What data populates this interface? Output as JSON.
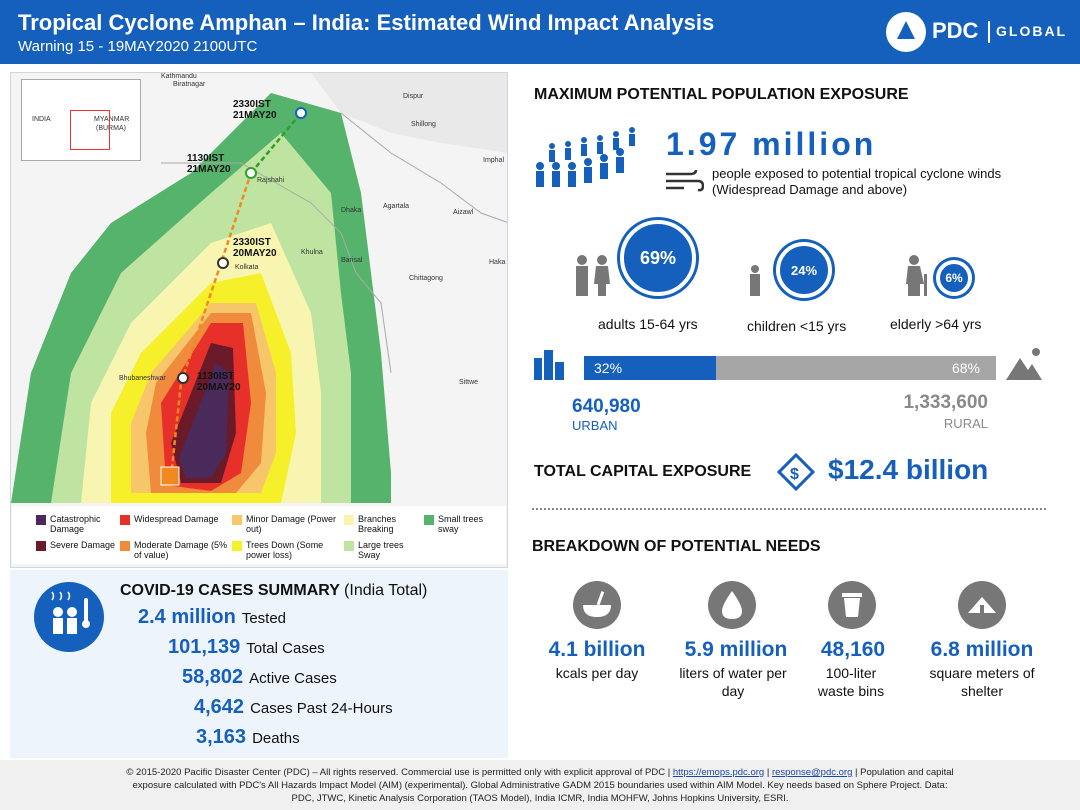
{
  "header": {
    "title": "Tropical Cyclone Amphan – India: Estimated Wind Impact Analysis",
    "subtitle": "Warning 15 - 19MAY2020 2100UTC",
    "brand_name": "PDC",
    "brand_global": "GLOBAL"
  },
  "map": {
    "inset_labels": [
      "INDIA",
      "MYANMAR",
      "(BURMA)"
    ],
    "places": [
      "Kathmandu",
      "Biratnagar",
      "Dispur",
      "Shillong",
      "Imphal",
      "Rajshahi",
      "Dhaka",
      "Agartala",
      "Aizawl",
      "Khulna",
      "Barisal",
      "Kolkata",
      "Chittagong",
      "Bhubaneshwar",
      "Sittwe",
      "Haka"
    ],
    "track_points": [
      {
        "label": "2330IST 21MAY20"
      },
      {
        "label": "1130IST 21MAY20"
      },
      {
        "label": "2330IST 20MAY20"
      },
      {
        "label": "1130IST 20MAY20"
      }
    ],
    "legend": [
      {
        "label": "Catastrophic Damage",
        "color": "#4a2a5a"
      },
      {
        "label": "Severe Damage",
        "color": "#6b1a2a"
      },
      {
        "label": "Widespread Damage",
        "color": "#e8302a"
      },
      {
        "label": "Moderate Damage (5% of value)",
        "color": "#f08a3c"
      },
      {
        "label": "Minor Damage (Power out)",
        "color": "#f7c66a"
      },
      {
        "label": "Trees Down (Some power loss)",
        "color": "#f5f02a"
      },
      {
        "label": "Branches Breaking",
        "color": "#f8f5b0"
      },
      {
        "label": "Large trees Sway",
        "color": "#bfe3a0"
      },
      {
        "label": "Small trees sway",
        "color": "#55b36b"
      }
    ]
  },
  "covid": {
    "title": "COVID-19 CASES SUMMARY",
    "title_sub": "(India Total)",
    "rows": [
      {
        "value": "2.4 million",
        "label": "Tested"
      },
      {
        "value": "101,139",
        "label": "Total Cases"
      },
      {
        "value": "58,802",
        "label": "Active Cases"
      },
      {
        "value": "4,642",
        "label": "Cases Past 24-Hours"
      },
      {
        "value": "3,163",
        "label": "Deaths"
      }
    ]
  },
  "exposure": {
    "title": "MAXIMUM POTENTIAL POPULATION EXPOSURE",
    "total": "1.97 million",
    "description_1": "people exposed to potential tropical cyclone winds",
    "description_2": "(Widespread Damage and above)",
    "groups": [
      {
        "pct": "69%",
        "label": "adults 15-64 yrs"
      },
      {
        "pct": "24%",
        "label": "children <15 yrs"
      },
      {
        "pct": "6%",
        "label": "elderly >64 yrs"
      }
    ],
    "urban_pct": "32%",
    "rural_pct": "68%",
    "urban_fraction": 0.32,
    "urban_value": "640,980",
    "urban_label": "URBAN",
    "rural_value": "1,333,600",
    "rural_label": "RURAL"
  },
  "capital": {
    "title": "TOTAL CAPITAL EXPOSURE",
    "value": "$12.4 billion"
  },
  "needs": {
    "title": "BREAKDOWN OF POTENTIAL NEEDS",
    "items": [
      {
        "value": "4.1 billion",
        "label": "kcals per day"
      },
      {
        "value": "5.9 million",
        "label": "liters of water per day"
      },
      {
        "value": "48,160",
        "label": "100-liter waste bins"
      },
      {
        "value": "6.8 million",
        "label": "square meters of shelter"
      }
    ]
  },
  "footer": {
    "line_1a": "© 2015-2020 Pacific Disaster Center (PDC) – All rights reserved. Commercial use is permitted only with explicit approval of PDC",
    "link_1": "https://emops.pdc.org",
    "link_2": "response@pdc.org",
    "line_1b": "Population and capital",
    "line_2": "exposure calculated with PDC's All Hazards Impact Model (AIM) (experimental). Global Administrative GADM 2015 boundaries used within AIM Model. Key needs based on Sphere Project. Data:",
    "line_3": "PDC, JTWC, Kinetic Analysis Corporation (TAOS Model), India ICMR, India MOHFW, Johns Hopkins University, ESRI."
  }
}
